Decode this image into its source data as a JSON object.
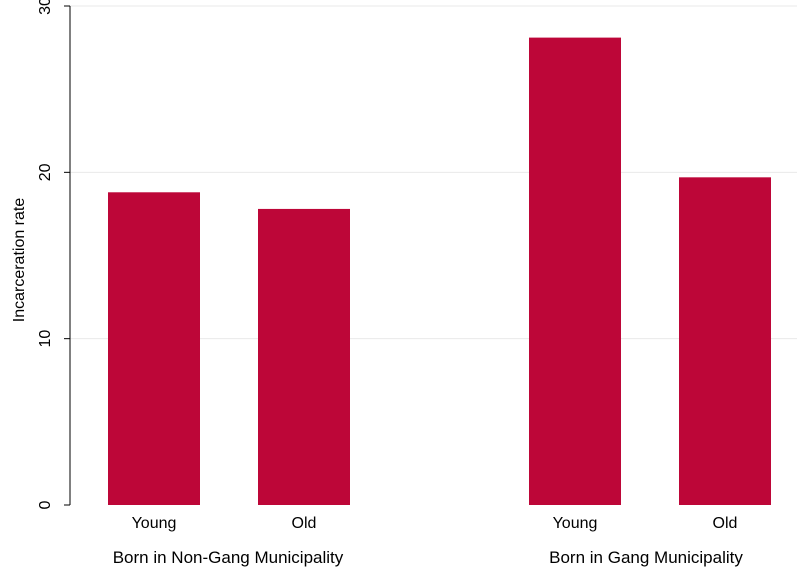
{
  "chart_data": {
    "type": "bar",
    "ylabel": "Incarceration rate",
    "ylim": [
      0,
      30
    ],
    "yticks": [
      0,
      10,
      20,
      30
    ],
    "grid": true,
    "bar_color": "#BD0638",
    "groups": [
      {
        "label": "Born in Non-Gang Municipality",
        "bars": [
          {
            "label": "Young",
            "value": 18.8
          },
          {
            "label": "Old",
            "value": 17.8
          }
        ]
      },
      {
        "label": "Born in Gang Municipality",
        "bars": [
          {
            "label": "Young",
            "value": 28.1
          },
          {
            "label": "Old",
            "value": 19.7
          }
        ]
      }
    ]
  }
}
